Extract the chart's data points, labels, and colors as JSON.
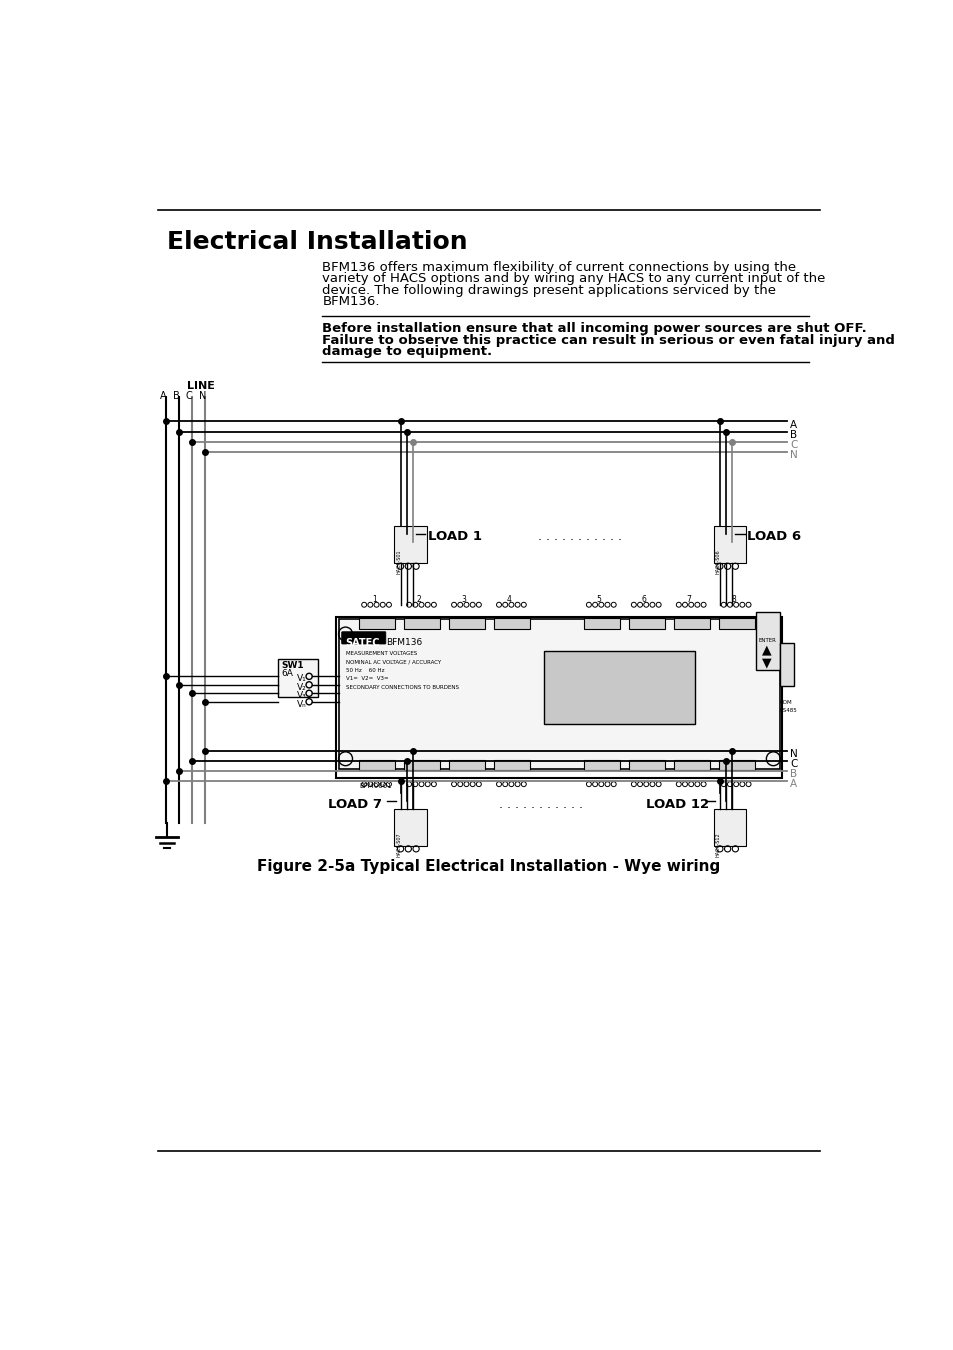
{
  "title": "Electrical Installation",
  "body_text_1": "BFM136 offers maximum flexibility of current connections by using the",
  "body_text_2": "variety of HACS options and by wiring any HACS to any current input of the",
  "body_text_3": "device. The following drawings present applications serviced by the",
  "body_text_4": "BFM136.",
  "warning_1": "Before installation ensure that all incoming power sources are shut OFF.",
  "warning_2": "Failure to observe this practice can result in serious or even fatal injury and",
  "warning_3": "damage to equipment.",
  "caption": "Figure 2-5a Typical Electrical Installation - Wye wiring",
  "bg_color": "#ffffff",
  "text_color": "#000000",
  "gray_color": "#808080",
  "title_fontsize": 18,
  "body_fontsize": 9.5,
  "warning_fontsize": 9.5,
  "caption_fontsize": 11,
  "dots": ". . . . . . . . . . ."
}
